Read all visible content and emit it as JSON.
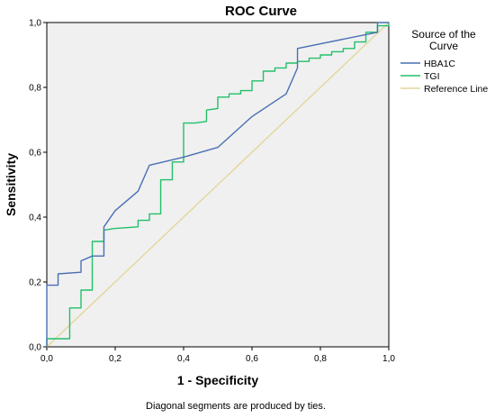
{
  "chart_data": {
    "type": "line",
    "title": "ROC Curve",
    "xlabel": "1 - Specificity",
    "ylabel": "Sensitivity",
    "xlim": [
      0.0,
      1.0
    ],
    "ylim": [
      0.0,
      1.0
    ],
    "x_ticks": [
      "0,0",
      "0,2",
      "0,4",
      "0,6",
      "0,8",
      "1,0"
    ],
    "y_ticks": [
      "0,0",
      "0,2",
      "0,4",
      "0,6",
      "0,8",
      "1,0"
    ],
    "grid": false,
    "legend": {
      "position": "right",
      "title_lines": [
        "Source of the",
        "Curve"
      ]
    },
    "series": [
      {
        "name": "HBA1C",
        "color": "#4a6fb5",
        "points": [
          [
            0,
            0
          ],
          [
            0,
            0.19
          ],
          [
            0.033,
            0.19
          ],
          [
            0.033,
            0.225
          ],
          [
            0.1,
            0.23
          ],
          [
            0.1,
            0.265
          ],
          [
            0.133,
            0.28
          ],
          [
            0.167,
            0.28
          ],
          [
            0.167,
            0.37
          ],
          [
            0.2,
            0.42
          ],
          [
            0.267,
            0.48
          ],
          [
            0.3,
            0.56
          ],
          [
            0.4,
            0.585
          ],
          [
            0.5,
            0.615
          ],
          [
            0.6,
            0.71
          ],
          [
            0.7,
            0.78
          ],
          [
            0.733,
            0.86
          ],
          [
            0.733,
            0.92
          ],
          [
            0.967,
            0.97
          ],
          [
            0.967,
            1.0
          ],
          [
            1.0,
            1.0
          ]
        ]
      },
      {
        "name": "TGI",
        "color": "#22c06a",
        "points": [
          [
            0,
            0
          ],
          [
            0,
            0.025
          ],
          [
            0.067,
            0.025
          ],
          [
            0.067,
            0.12
          ],
          [
            0.1,
            0.12
          ],
          [
            0.1,
            0.175
          ],
          [
            0.133,
            0.175
          ],
          [
            0.133,
            0.325
          ],
          [
            0.167,
            0.325
          ],
          [
            0.167,
            0.36
          ],
          [
            0.2,
            0.365
          ],
          [
            0.267,
            0.37
          ],
          [
            0.267,
            0.39
          ],
          [
            0.3,
            0.39
          ],
          [
            0.3,
            0.41
          ],
          [
            0.333,
            0.41
          ],
          [
            0.333,
            0.515
          ],
          [
            0.367,
            0.515
          ],
          [
            0.367,
            0.57
          ],
          [
            0.4,
            0.57
          ],
          [
            0.4,
            0.69
          ],
          [
            0.433,
            0.69
          ],
          [
            0.467,
            0.695
          ],
          [
            0.467,
            0.73
          ],
          [
            0.5,
            0.735
          ],
          [
            0.5,
            0.77
          ],
          [
            0.533,
            0.77
          ],
          [
            0.533,
            0.78
          ],
          [
            0.567,
            0.78
          ],
          [
            0.567,
            0.79
          ],
          [
            0.6,
            0.79
          ],
          [
            0.6,
            0.82
          ],
          [
            0.633,
            0.82
          ],
          [
            0.633,
            0.85
          ],
          [
            0.667,
            0.85
          ],
          [
            0.667,
            0.86
          ],
          [
            0.7,
            0.86
          ],
          [
            0.7,
            0.875
          ],
          [
            0.733,
            0.875
          ],
          [
            0.733,
            0.88
          ],
          [
            0.767,
            0.88
          ],
          [
            0.767,
            0.89
          ],
          [
            0.8,
            0.89
          ],
          [
            0.8,
            0.9
          ],
          [
            0.833,
            0.9
          ],
          [
            0.833,
            0.91
          ],
          [
            0.867,
            0.91
          ],
          [
            0.867,
            0.92
          ],
          [
            0.9,
            0.92
          ],
          [
            0.9,
            0.94
          ],
          [
            0.933,
            0.94
          ],
          [
            0.933,
            0.97
          ],
          [
            0.967,
            0.97
          ],
          [
            0.967,
            0.99
          ],
          [
            1.0,
            0.99
          ],
          [
            1.0,
            1.0
          ]
        ]
      },
      {
        "name": "Reference Line",
        "color": "#e3d79a",
        "points": [
          [
            0,
            0
          ],
          [
            1,
            1
          ]
        ]
      }
    ],
    "footnote": "Diagonal segments are produced by ties."
  }
}
